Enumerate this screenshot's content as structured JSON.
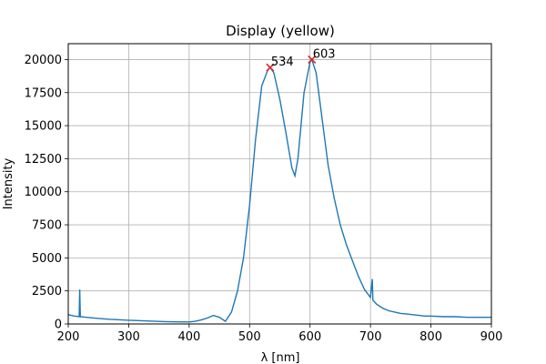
{
  "chart_data": {
    "type": "line",
    "title": "Display (yellow)",
    "xlabel": "λ [nm]",
    "ylabel": "Intensity",
    "xlim": [
      200,
      900
    ],
    "ylim": [
      0,
      21200
    ],
    "xticks": [
      200,
      300,
      400,
      500,
      600,
      700,
      800,
      900
    ],
    "yticks": [
      0,
      2500,
      5000,
      7500,
      10000,
      12500,
      15000,
      17500,
      20000
    ],
    "grid": true,
    "line_color": "#1f77b4",
    "marker_color": "#d62728",
    "series": [
      {
        "x": [
          200,
          210,
          218,
          219,
          220,
          230,
          250,
          270,
          300,
          330,
          360,
          380,
          400,
          410,
          420,
          430,
          440,
          450,
          460,
          470,
          480,
          490,
          500,
          510,
          520,
          530,
          534,
          540,
          550,
          560,
          570,
          575,
          580,
          590,
          600,
          603,
          610,
          620,
          630,
          640,
          650,
          660,
          670,
          680,
          690,
          700,
          703,
          704,
          710,
          720,
          730,
          740,
          750,
          760,
          770,
          780,
          790,
          800,
          820,
          840,
          860,
          880,
          900
        ],
        "y": [
          700,
          600,
          550,
          2600,
          550,
          500,
          420,
          350,
          280,
          230,
          180,
          160,
          150,
          200,
          300,
          450,
          650,
          500,
          200,
          900,
          2500,
          5000,
          9000,
          14000,
          18000,
          19200,
          19400,
          19000,
          17000,
          14500,
          11800,
          11200,
          12500,
          17500,
          19800,
          20000,
          19000,
          15500,
          12000,
          9500,
          7500,
          6000,
          4800,
          3600,
          2600,
          2000,
          3400,
          1800,
          1500,
          1200,
          1000,
          900,
          800,
          750,
          700,
          650,
          600,
          600,
          550,
          550,
          500,
          500,
          500
        ]
      }
    ],
    "peaks": [
      {
        "x": 534,
        "y": 19400,
        "label": "534"
      },
      {
        "x": 603,
        "y": 20000,
        "label": "603"
      }
    ]
  }
}
